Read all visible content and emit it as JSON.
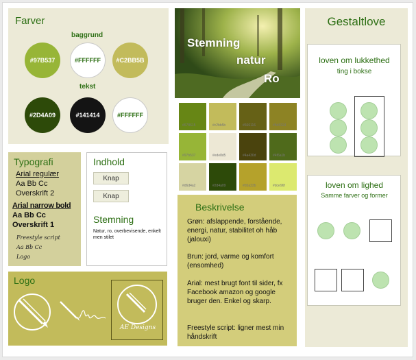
{
  "farver": {
    "title": "Farver",
    "baggrund_label": "baggrund",
    "tekst_label": "tekst",
    "circles": [
      {
        "label": "#97B537",
        "bg": "#97B537",
        "fg": "#ffffff"
      },
      {
        "label": "#FFFFFF",
        "bg": "#FFFFFF",
        "fg": "#2d6f14"
      },
      {
        "label": "#C2BB5B",
        "bg": "#C2BB5B",
        "fg": "#ffffff"
      },
      {
        "label": "#2D4A09",
        "bg": "#2D4A09",
        "fg": "#ffffff"
      },
      {
        "label": "#141414",
        "bg": "#141414",
        "fg": "#ffffff"
      },
      {
        "label": "#FFFFFF",
        "bg": "#FFFFFF",
        "fg": "#2d6f14"
      }
    ]
  },
  "typografi": {
    "title": "Typografi",
    "arial_regular": "Arial regulær",
    "arial_sample": "Aa Bb Cc",
    "arial_overskrift": "Overskrift 2",
    "narrow_bold": "Arial narrow bold",
    "narrow_sample": "Aa Bb Cc",
    "narrow_overskrift": "Overskrift 1",
    "freestyle": "Freestyle script",
    "freestyle_sample": "Aa Bb Cc",
    "freestyle_logo": "Logo"
  },
  "indhold": {
    "title": "Indhold",
    "button1": "Knap",
    "button2": "Knap",
    "stemning_title": "Stemning",
    "stemning_text": "Natur, ro, overbevisende, enkelt men stilet"
  },
  "logo": {
    "title": "Logo",
    "signature": "AE Designs"
  },
  "photo": {
    "word1": "Stemning",
    "word2": "natur",
    "word3": "Ro"
  },
  "palette": [
    {
      "hex": "#678615",
      "label": "#678615"
    },
    {
      "hex": "#c2bb5b",
      "label": "#c2bb5b"
    },
    {
      "hex": "#666116",
      "label": "#666116"
    },
    {
      "hex": "#8d8324",
      "label": "#8d8324"
    },
    {
      "hex": "#97b537",
      "label": "#97b537"
    },
    {
      "hex": "#ede8d5",
      "label": "#ede8d5"
    },
    {
      "hex": "#4a430d",
      "label": "#4a430d"
    },
    {
      "hex": "#4f6a1b",
      "label": "#4f6a1b"
    },
    {
      "hex": "#d6d4a2",
      "label": "#d6d4a2"
    },
    {
      "hex": "#2d4a09",
      "label": "#2d4a09"
    },
    {
      "hex": "#b5a22b",
      "label": "#b5a22b"
    },
    {
      "hex": "#dce96f",
      "label": "#dce96f"
    }
  ],
  "beskrivelse": {
    "title": "Beskrivelse",
    "p1": "Grøn: afslappende, forstående, energi, natur, stabilitet oh håb (jalouxi)",
    "p2": "Brun: jord, varme og komfort (ensomhed)",
    "p3": "Arial: mest brugt font til sider, fx Facebook amazon og google bruger den. Enkel og skarp.",
    "p4": "Freestyle script: ligner mest min håndskrift"
  },
  "gestalt": {
    "title": "Gestaltlove",
    "lukkethed_title": "loven om lukkethed",
    "lukkethed_sub": "ting i bokse",
    "lighed_title": "loven om lighed",
    "lighed_sub": "Samme farver og former"
  }
}
